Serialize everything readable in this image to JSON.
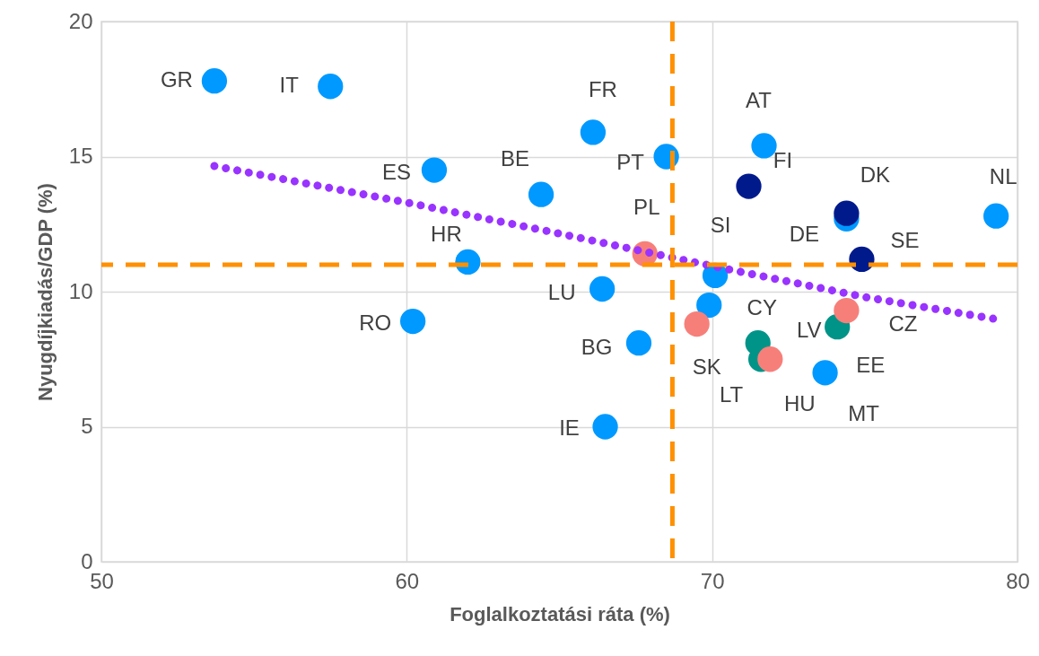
{
  "chart_data": {
    "type": "scatter",
    "xlabel": "Foglalkoztatási ráta (%)",
    "ylabel": "Nyugdíjkiadás/GDP (%)",
    "xlim": [
      50,
      80
    ],
    "xticks": [
      50,
      60,
      70,
      80
    ],
    "ylim": [
      0,
      20
    ],
    "yticks": [
      0,
      5,
      10,
      15,
      20
    ],
    "grid": true,
    "legend": false,
    "marker": "circle",
    "series": [
      {
        "color": "#0099ff",
        "x": [
          53.7,
          57.5,
          66.1,
          68.5,
          71.7,
          74.4,
          79.3,
          60.9,
          64.4,
          62.0,
          70.1,
          66.4,
          60.2,
          69.9,
          67.6,
          73.7,
          66.5
        ],
        "values": [
          17.8,
          17.6,
          15.9,
          15.0,
          15.4,
          12.7,
          12.8,
          14.5,
          13.6,
          11.1,
          10.6,
          10.1,
          8.9,
          9.5,
          8.1,
          7.0,
          5.0
        ],
        "value_labels": [
          "GR",
          "IT",
          "FR",
          "PT",
          "AT",
          "DE",
          "NL",
          "ES",
          "BE",
          "HR",
          "SI",
          "LU",
          "RO",
          "CY",
          "BG",
          "MT",
          "IE"
        ]
      },
      {
        "color": "#001a8c",
        "x": [
          71.2,
          74.4,
          74.9
        ],
        "values": [
          13.9,
          12.9,
          11.2
        ],
        "value_labels": [
          "FI",
          "DK",
          "SE"
        ]
      },
      {
        "color": "#009488",
        "x": [
          71.5,
          74.1,
          71.6
        ],
        "values": [
          8.1,
          8.7,
          7.5
        ],
        "value_labels": [
          "LV",
          "EE",
          "LT"
        ]
      },
      {
        "color": "#f77f7a",
        "x": [
          67.8,
          69.5,
          74.4,
          71.9
        ],
        "values": [
          11.4,
          8.8,
          9.3,
          7.5
        ],
        "value_labels": [
          "PL",
          "SK",
          "CZ",
          "HU"
        ]
      },
      {
        "type": "line",
        "color": "#9933ff",
        "line_style": "dotted",
        "marker": "none",
        "x": [
          53.7,
          60,
          65,
          70,
          75,
          79.2
        ],
        "values": [
          14.65,
          13.3,
          12.15,
          10.95,
          9.8,
          9.0
        ]
      }
    ],
    "ref_lines": [
      {
        "axis": "x",
        "value": 68.7,
        "color": "#ff9000",
        "line_style": "dashed"
      },
      {
        "axis": "y",
        "value": 11,
        "color": "#ff9000",
        "line_style": "dashed"
      }
    ]
  }
}
